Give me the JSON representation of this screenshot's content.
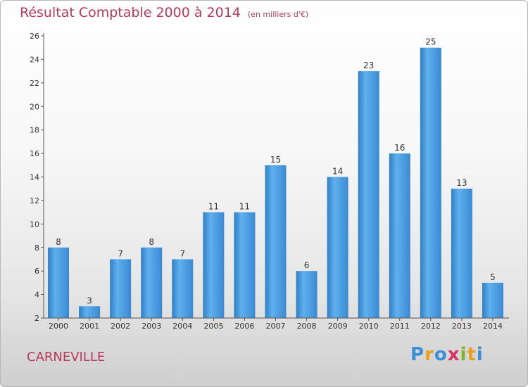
{
  "header": {
    "title": "Résultat Comptable 2000 à 2014",
    "unit": "(en milliers d'€)"
  },
  "footer": {
    "city": "CARNEVILLE",
    "logo_letters": [
      "P",
      "r",
      "o",
      "x",
      "i",
      "t",
      "i"
    ],
    "logo_colors": [
      "#3a8fd6",
      "#e8a020",
      "#3a8fd6",
      "#d83060",
      "#7ab52a",
      "#e8a020",
      "#3a8fd6"
    ]
  },
  "chart_data": {
    "type": "bar",
    "categories": [
      "2000",
      "2001",
      "2002",
      "2003",
      "2004",
      "2005",
      "2006",
      "2007",
      "2008",
      "2009",
      "2010",
      "2011",
      "2012",
      "2013",
      "2014"
    ],
    "values": [
      8,
      3,
      7,
      8,
      7,
      11,
      11,
      15,
      6,
      14,
      23,
      16,
      25,
      13,
      5
    ],
    "ylim": [
      2,
      26
    ],
    "yticks": [
      2,
      4,
      6,
      8,
      10,
      12,
      14,
      16,
      18,
      20,
      22,
      24,
      26
    ],
    "grid": false,
    "bar_color": "#4d9fe0"
  }
}
